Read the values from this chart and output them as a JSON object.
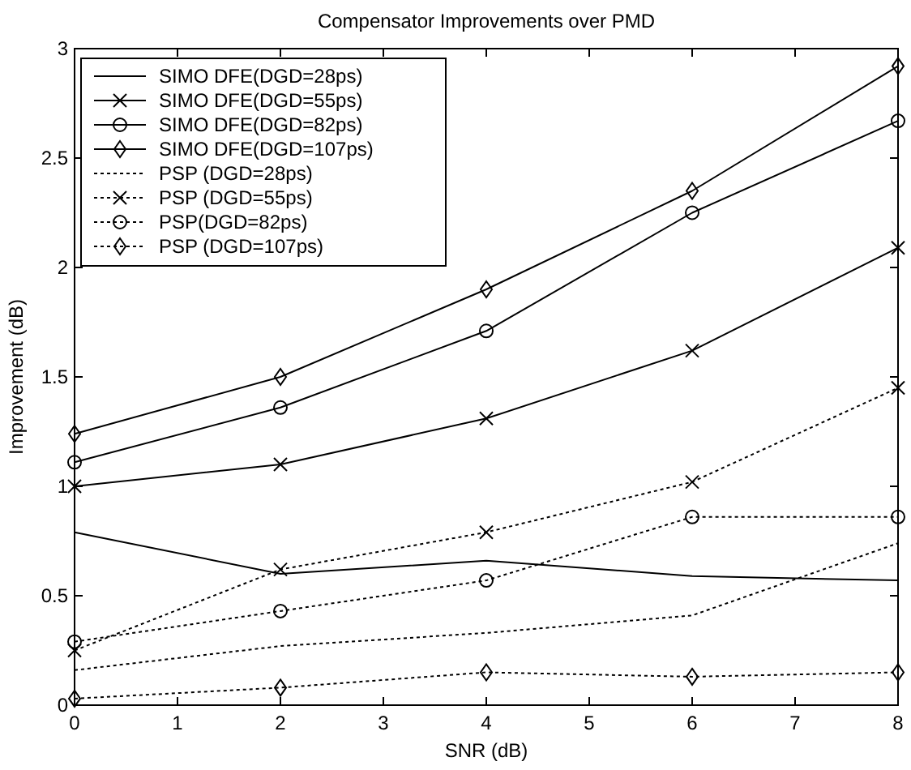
{
  "chart_data": {
    "type": "line",
    "title": "Compensator Improvements over PMD",
    "xlabel": "SNR (dB)",
    "ylabel": "Improvement (dB)",
    "x": [
      0,
      2,
      4,
      6,
      8
    ],
    "xlim": [
      0,
      8
    ],
    "xticks": [
      0,
      1,
      2,
      3,
      4,
      5,
      6,
      7,
      8
    ],
    "ylim": [
      0,
      3
    ],
    "yticks": [
      0,
      0.5,
      1,
      1.5,
      2,
      2.5,
      3
    ],
    "grid": false,
    "legend": "top left",
    "series": [
      {
        "name": "SIMO DFE(DGD=28ps)",
        "color": "#000000",
        "marker": "none",
        "line_style": "solid",
        "values": [
          0.79,
          0.6,
          0.66,
          0.59,
          0.57
        ]
      },
      {
        "name": "SIMO DFE(DGD=55ps)",
        "color": "#000000",
        "marker": "cross",
        "line_style": "solid",
        "values": [
          1.0,
          1.1,
          1.31,
          1.62,
          2.09
        ]
      },
      {
        "name": "SIMO DFE(DGD=82ps)",
        "color": "#000000",
        "marker": "circle",
        "line_style": "solid",
        "values": [
          1.11,
          1.36,
          1.71,
          2.25,
          2.67
        ]
      },
      {
        "name": "SIMO DFE(DGD=107ps)",
        "color": "#000000",
        "marker": "diamond",
        "line_style": "solid",
        "values": [
          1.24,
          1.5,
          1.9,
          2.35,
          2.92
        ]
      },
      {
        "name": "PSP (DGD=28ps)",
        "color": "#000000",
        "marker": "none",
        "line_style": "dotted",
        "values": [
          0.16,
          0.27,
          0.33,
          0.41,
          0.74
        ]
      },
      {
        "name": "PSP (DGD=55ps)",
        "color": "#000000",
        "marker": "cross",
        "line_style": "dotted",
        "values": [
          0.25,
          0.62,
          0.79,
          1.02,
          1.45
        ]
      },
      {
        "name": "PSP(DGD=82ps)",
        "color": "#000000",
        "marker": "circle",
        "line_style": "dotted",
        "values": [
          0.29,
          0.43,
          0.57,
          0.86,
          0.86
        ]
      },
      {
        "name": "PSP (DGD=107ps)",
        "color": "#000000",
        "marker": "diamond",
        "line_style": "dotted",
        "values": [
          0.03,
          0.08,
          0.15,
          0.13,
          0.15
        ]
      }
    ]
  }
}
